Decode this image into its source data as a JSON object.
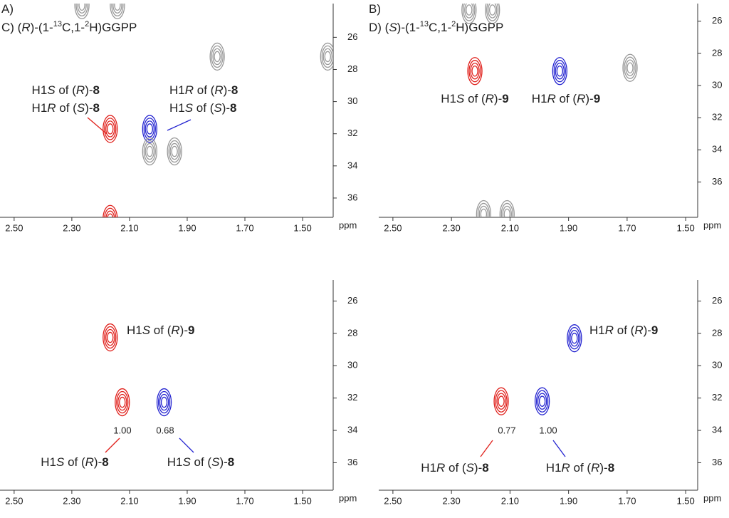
{
  "chart_data": [
    {
      "type": "contour",
      "title": [
        {
          "text": "A)"
        }
      ],
      "x_label": "ppm",
      "xlim": [
        2.549,
        1.394
      ],
      "ylim": [
        23.9,
        37.2
      ],
      "xticks": [
        {
          "value": 2.5,
          "label": "2.50"
        },
        {
          "value": 2.3,
          "label": "2.30"
        },
        {
          "value": 2.1,
          "label": "2.10"
        },
        {
          "value": 1.9,
          "label": "1.90"
        },
        {
          "value": 1.7,
          "label": "1.70"
        },
        {
          "value": 1.5,
          "label": "1.50"
        }
      ],
      "yticks": [
        26,
        28,
        30,
        32,
        34,
        36
      ],
      "peaks": {
        "x": [
          2.265,
          2.142,
          1.796,
          1.413,
          2.167,
          2.03,
          2.03,
          1.944,
          2.167
        ],
        "y": [
          24.0,
          24.0,
          27.2,
          27.2,
          31.7,
          31.7,
          33.1,
          33.1,
          37.3
        ],
        "colors": [
          "#999999",
          "#999999",
          "#999999",
          "#999999",
          "#e0201b",
          "#2424d0",
          "#999999",
          "#999999",
          "#e0201b"
        ]
      },
      "labels": [
        {
          "color": "#e0201b",
          "lines": [
            [
              {
                "text": "H1"
              },
              {
                "text": "S",
                "style": "italic"
              },
              {
                "text": " of ("
              },
              {
                "text": "R",
                "style": "italic"
              },
              {
                "text": ")-"
              },
              {
                "text": "8",
                "style": "bold"
              }
            ],
            [
              {
                "text": "H1"
              },
              {
                "text": "R",
                "style": "italic"
              },
              {
                "text": " of ("
              },
              {
                "text": "S",
                "style": "italic"
              },
              {
                "text": ")-"
              },
              {
                "text": "8",
                "style": "bold"
              }
            ]
          ]
        },
        {
          "color": "#2424d0",
          "lines": [
            [
              {
                "text": "H1"
              },
              {
                "text": "R",
                "style": "italic"
              },
              {
                "text": " of ("
              },
              {
                "text": "R",
                "style": "italic"
              },
              {
                "text": ")-"
              },
              {
                "text": "8",
                "style": "bold"
              }
            ],
            [
              {
                "text": "H1"
              },
              {
                "text": "S",
                "style": "italic"
              },
              {
                "text": " of ("
              },
              {
                "text": "S",
                "style": "italic"
              },
              {
                "text": ")-"
              },
              {
                "text": "8",
                "style": "bold"
              }
            ]
          ]
        }
      ]
    },
    {
      "type": "contour",
      "title": [
        {
          "text": "B)"
        }
      ],
      "x_label": "ppm",
      "xlim": [
        2.597,
        1.459
      ],
      "ylim": [
        24.9,
        38.2
      ],
      "xticks": [
        {
          "value": 2.5,
          "label": "2.50"
        },
        {
          "value": 2.3,
          "label": "2.30"
        },
        {
          "value": 2.1,
          "label": "2.10"
        },
        {
          "value": 1.9,
          "label": "1.90"
        },
        {
          "value": 1.7,
          "label": "1.70"
        },
        {
          "value": 1.5,
          "label": "1.50"
        }
      ],
      "yticks": [
        26,
        28,
        30,
        32,
        34,
        36
      ],
      "peaks": {
        "x": [
          2.24,
          2.16,
          2.22,
          1.93,
          1.69,
          2.19,
          2.11
        ],
        "y": [
          25.3,
          25.3,
          29.1,
          29.1,
          28.9,
          38.0,
          38.0
        ],
        "colors": [
          "#999999",
          "#999999",
          "#e0201b",
          "#2424d0",
          "#999999",
          "#999999",
          "#999999"
        ]
      },
      "labels": [
        {
          "lines": [
            [
              {
                "text": "H1"
              },
              {
                "text": "S",
                "style": "italic"
              },
              {
                "text": " of ("
              },
              {
                "text": "R",
                "style": "italic"
              },
              {
                "text": ")-"
              },
              {
                "text": "9",
                "style": "bold"
              }
            ]
          ]
        },
        {
          "lines": [
            [
              {
                "text": "H1"
              },
              {
                "text": "R",
                "style": "italic"
              },
              {
                "text": " of ("
              },
              {
                "text": "R",
                "style": "italic"
              },
              {
                "text": ")-"
              },
              {
                "text": "9",
                "style": "bold"
              }
            ]
          ]
        }
      ]
    },
    {
      "type": "contour",
      "title": [
        {
          "text": "C) ("
        },
        {
          "text": "R",
          "style": "italic"
        },
        {
          "text": ")-(1-"
        },
        {
          "text": "13",
          "style": "sup"
        },
        {
          "text": "C,1-"
        },
        {
          "text": "2",
          "style": "sup"
        },
        {
          "text": "H)GGPP"
        }
      ],
      "x_label": "ppm",
      "xlim": [
        2.549,
        1.394
      ],
      "ylim": [
        24.7,
        37.7
      ],
      "xticks": [
        {
          "value": 2.5,
          "label": "2.50"
        },
        {
          "value": 2.3,
          "label": "2.30"
        },
        {
          "value": 2.1,
          "label": "2.10"
        },
        {
          "value": 1.9,
          "label": "1.90"
        },
        {
          "value": 1.7,
          "label": "1.70"
        },
        {
          "value": 1.5,
          "label": "1.50"
        }
      ],
      "yticks": [
        26,
        28,
        30,
        32,
        34,
        36
      ],
      "peaks": {
        "x": [
          2.167,
          2.125,
          1.98
        ],
        "y": [
          28.25,
          32.26,
          32.26
        ],
        "colors": [
          "#e0201b",
          "#e0201b",
          "#2424d0"
        ]
      },
      "integrals": {
        "values": [
          1,
          0.68
        ],
        "value_labels": [
          "1.00",
          "0.68"
        ]
      },
      "labels": [
        {
          "lines": [
            [
              {
                "text": "H1"
              },
              {
                "text": "S",
                "style": "italic"
              },
              {
                "text": " of ("
              },
              {
                "text": "R",
                "style": "italic"
              },
              {
                "text": ")-"
              },
              {
                "text": "9",
                "style": "bold"
              }
            ]
          ]
        },
        {
          "color": "#e0201b",
          "lines": [
            [
              {
                "text": "H1"
              },
              {
                "text": "S",
                "style": "italic"
              },
              {
                "text": " of ("
              },
              {
                "text": "R",
                "style": "italic"
              },
              {
                "text": ")-"
              },
              {
                "text": "8",
                "style": "bold"
              }
            ]
          ]
        },
        {
          "color": "#2424d0",
          "lines": [
            [
              {
                "text": "H1"
              },
              {
                "text": "S",
                "style": "italic"
              },
              {
                "text": " of ("
              },
              {
                "text": "S",
                "style": "italic"
              },
              {
                "text": ")-"
              },
              {
                "text": "8",
                "style": "bold"
              }
            ]
          ]
        }
      ]
    },
    {
      "type": "contour",
      "title": [
        {
          "text": "D) ("
        },
        {
          "text": "S",
          "style": "italic"
        },
        {
          "text": ")-(1-"
        },
        {
          "text": "13",
          "style": "sup"
        },
        {
          "text": "C,1-"
        },
        {
          "text": "2",
          "style": "sup"
        },
        {
          "text": "H)GGPP"
        }
      ],
      "x_label": "ppm",
      "xlim": [
        2.597,
        1.459
      ],
      "ylim": [
        24.7,
        37.7
      ],
      "xticks": [
        {
          "value": 2.5,
          "label": "2.50"
        },
        {
          "value": 2.3,
          "label": "2.30"
        },
        {
          "value": 2.1,
          "label": "2.10"
        },
        {
          "value": 1.9,
          "label": "1.90"
        },
        {
          "value": 1.7,
          "label": "1.70"
        },
        {
          "value": 1.5,
          "label": "1.50"
        }
      ],
      "yticks": [
        26,
        28,
        30,
        32,
        34,
        36
      ],
      "peaks": {
        "x": [
          1.88,
          2.13,
          1.99
        ],
        "y": [
          28.3,
          32.2,
          32.2
        ],
        "colors": [
          "#2424d0",
          "#e0201b",
          "#2424d0"
        ]
      },
      "integrals": {
        "values": [
          0.77,
          1
        ],
        "value_labels": [
          "0.77",
          "1.00"
        ]
      },
      "labels": [
        {
          "lines": [
            [
              {
                "text": "H1"
              },
              {
                "text": "R",
                "style": "italic"
              },
              {
                "text": " of ("
              },
              {
                "text": "R",
                "style": "italic"
              },
              {
                "text": ")-"
              },
              {
                "text": "9",
                "style": "bold"
              }
            ]
          ]
        },
        {
          "color": "#e0201b",
          "lines": [
            [
              {
                "text": "H1"
              },
              {
                "text": "R",
                "style": "italic"
              },
              {
                "text": " of ("
              },
              {
                "text": "S",
                "style": "italic"
              },
              {
                "text": ")-"
              },
              {
                "text": "8",
                "style": "bold"
              }
            ]
          ]
        },
        {
          "color": "#2424d0",
          "lines": [
            [
              {
                "text": "H1"
              },
              {
                "text": "R",
                "style": "italic"
              },
              {
                "text": " of ("
              },
              {
                "text": "R",
                "style": "italic"
              },
              {
                "text": ")-"
              },
              {
                "text": "8",
                "style": "bold"
              }
            ]
          ]
        }
      ]
    }
  ]
}
